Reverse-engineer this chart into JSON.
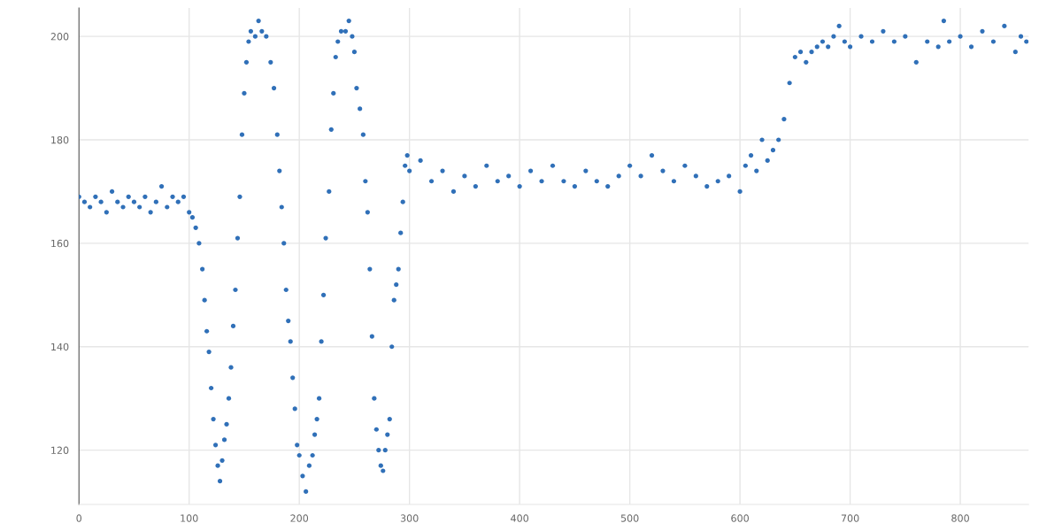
{
  "chart_data": {
    "type": "scatter",
    "marker": "circle",
    "grid": true,
    "xlim": [
      0,
      862
    ],
    "ylim": [
      109.5,
      205.5
    ],
    "xticks": [
      0,
      100,
      200,
      300,
      400,
      500,
      600,
      700,
      800
    ],
    "yticks": [
      120,
      140,
      160,
      180,
      200
    ],
    "series": [
      {
        "color": "#3070b8",
        "x": [
          0,
          5,
          10,
          15,
          20,
          25,
          30,
          35,
          40,
          45,
          50,
          55,
          60,
          65,
          70,
          75,
          80,
          85,
          90,
          95,
          100,
          103,
          106,
          109,
          112,
          114,
          116,
          118,
          120,
          122,
          124,
          126,
          128,
          130,
          132,
          134,
          136,
          138,
          140,
          142,
          144,
          146,
          148,
          150,
          152,
          154,
          156,
          160,
          163,
          166,
          170,
          174,
          177,
          180,
          182,
          184,
          186,
          188,
          190,
          192,
          194,
          196,
          198,
          200,
          203,
          206,
          209,
          212,
          214,
          216,
          218,
          220,
          222,
          224,
          227,
          229,
          231,
          233,
          235,
          238,
          242,
          245,
          248,
          250,
          252,
          255,
          258,
          260,
          262,
          264,
          266,
          268,
          270,
          272,
          274,
          276,
          278,
          280,
          282,
          284,
          286,
          288,
          290,
          292,
          294,
          296,
          298,
          300,
          310,
          320,
          330,
          340,
          350,
          360,
          370,
          380,
          390,
          400,
          410,
          420,
          430,
          440,
          450,
          460,
          470,
          480,
          490,
          500,
          510,
          520,
          530,
          540,
          550,
          560,
          570,
          580,
          590,
          600,
          605,
          610,
          615,
          620,
          625,
          630,
          635,
          640,
          645,
          650,
          655,
          660,
          665,
          670,
          675,
          680,
          685,
          690,
          695,
          700,
          710,
          720,
          730,
          740,
          750,
          760,
          770,
          780,
          785,
          790,
          800,
          810,
          820,
          830,
          840,
          850,
          855,
          860
        ],
        "values": [
          169,
          168,
          167,
          169,
          168,
          166,
          170,
          168,
          167,
          169,
          168,
          167,
          169,
          166,
          168,
          171,
          167,
          169,
          168,
          169,
          166,
          165,
          163,
          160,
          155,
          149,
          143,
          139,
          132,
          126,
          121,
          117,
          114,
          118,
          122,
          125,
          130,
          136,
          144,
          151,
          161,
          169,
          181,
          189,
          195,
          199,
          201,
          200,
          203,
          201,
          200,
          195,
          190,
          181,
          174,
          167,
          160,
          151,
          145,
          141,
          134,
          128,
          121,
          119,
          115,
          112,
          117,
          119,
          123,
          126,
          130,
          141,
          150,
          161,
          170,
          182,
          189,
          196,
          199,
          201,
          201,
          203,
          200,
          197,
          190,
          186,
          181,
          172,
          166,
          155,
          142,
          130,
          124,
          120,
          117,
          116,
          120,
          123,
          126,
          140,
          149,
          152,
          155,
          162,
          168,
          175,
          177,
          174,
          176,
          172,
          174,
          170,
          173,
          171,
          175,
          172,
          173,
          171,
          174,
          172,
          175,
          172,
          171,
          174,
          172,
          171,
          173,
          175,
          173,
          177,
          174,
          172,
          175,
          173,
          171,
          172,
          173,
          170,
          175,
          177,
          174,
          180,
          176,
          178,
          180,
          184,
          191,
          196,
          197,
          195,
          197,
          198,
          199,
          198,
          200,
          202,
          199,
          198,
          200,
          199,
          201,
          199,
          200,
          195,
          199,
          198,
          203,
          199,
          200,
          198,
          201,
          199,
          202,
          197,
          200,
          199
        ]
      }
    ]
  }
}
